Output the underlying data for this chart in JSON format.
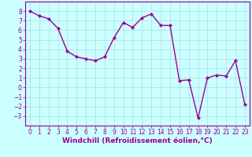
{
  "x": [
    0,
    1,
    2,
    3,
    4,
    5,
    6,
    7,
    8,
    9,
    10,
    11,
    12,
    13,
    14,
    15,
    16,
    17,
    18,
    19,
    20,
    21,
    22,
    23
  ],
  "y": [
    8.0,
    7.5,
    7.2,
    6.2,
    3.8,
    3.2,
    3.0,
    2.8,
    3.2,
    5.2,
    6.8,
    6.3,
    7.3,
    7.7,
    6.5,
    6.5,
    0.7,
    0.8,
    -3.2,
    1.0,
    1.3,
    1.2,
    2.8,
    -1.8
  ],
  "line_color": "#990099",
  "marker": "D",
  "marker_size": 2.0,
  "bg_color": "#ccffff",
  "grid_color": "#aadddd",
  "xlabel": "Windchill (Refroidissement éolien,°C)",
  "xlim": [
    -0.5,
    23.5
  ],
  "ylim": [
    -4,
    9
  ],
  "xticks": [
    0,
    1,
    2,
    3,
    4,
    5,
    6,
    7,
    8,
    9,
    10,
    11,
    12,
    13,
    14,
    15,
    16,
    17,
    18,
    19,
    20,
    21,
    22,
    23
  ],
  "yticks": [
    -3,
    -2,
    -1,
    0,
    1,
    2,
    3,
    4,
    5,
    6,
    7,
    8
  ],
  "xlabel_fontsize": 6.5,
  "tick_fontsize": 5.5,
  "line_width": 1.0
}
